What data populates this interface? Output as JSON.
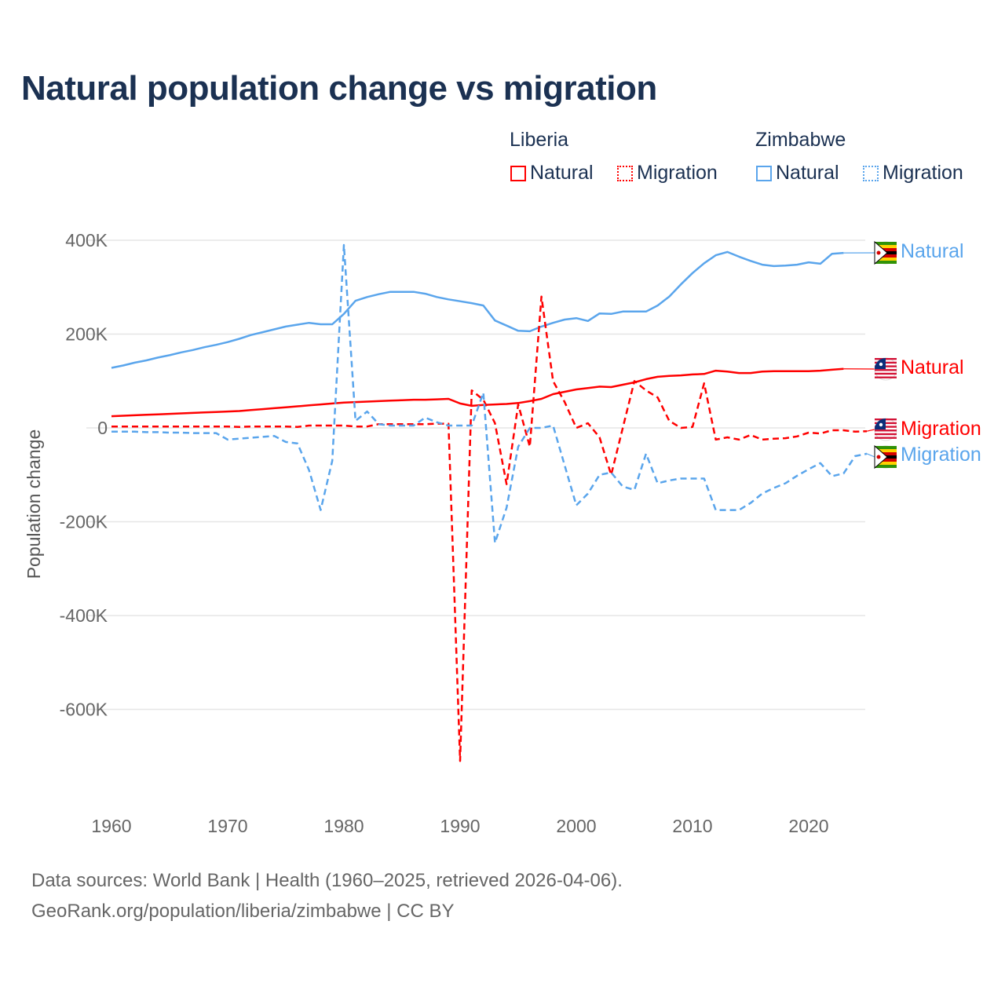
{
  "title": "Natural population change vs migration",
  "legend": {
    "groups": [
      {
        "name": "Liberia",
        "items": [
          "Natural",
          "Migration"
        ],
        "color": "#ff0000"
      },
      {
        "name": "Zimbabwe",
        "items": [
          "Natural",
          "Migration"
        ],
        "color": "#5aa5ec"
      }
    ]
  },
  "footer": {
    "line1": "Data sources: World Bank | Health (1960–2025, retrieved 2026-04-06).",
    "line2": "GeoRank.org/population/liberia/zimbabwe | CC BY"
  },
  "chart_data": {
    "type": "line",
    "title": "Natural population change vs migration",
    "xlabel": "",
    "ylabel": "Population change",
    "xlim": [
      1960,
      2025
    ],
    "ylim": [
      -720,
      420
    ],
    "x_ticks": [
      1960,
      1970,
      1980,
      1990,
      2000,
      2010,
      2020
    ],
    "y_ticks": [
      {
        "value": 400,
        "label": "400K"
      },
      {
        "value": 200,
        "label": "200K"
      },
      {
        "value": 0,
        "label": "0"
      },
      {
        "value": -200,
        "label": "-200K"
      },
      {
        "value": -400,
        "label": "-400K"
      },
      {
        "value": -600,
        "label": "-600K"
      }
    ],
    "units": "thousands",
    "series": [
      {
        "name": "Zimbabwe Natural",
        "label": "Natural",
        "color": "#5aa5ec",
        "dash": false,
        "start": 1960,
        "values": [
          128,
          133,
          139,
          144,
          150,
          155,
          161,
          166,
          172,
          177,
          183,
          190,
          198,
          204,
          210,
          216,
          220,
          224,
          221,
          221,
          243,
          271,
          279,
          285,
          290,
          290,
          290,
          286,
          279,
          274,
          270,
          266,
          261,
          229,
          218,
          207,
          206,
          216,
          224,
          231,
          234,
          228,
          244,
          243,
          248,
          248,
          248,
          261,
          280,
          306,
          330,
          351,
          368,
          375,
          365,
          356,
          348,
          345,
          346,
          348,
          353,
          350,
          371,
          373
        ]
      },
      {
        "name": "Liberia Natural",
        "label": "Natural",
        "color": "#ff0000",
        "dash": false,
        "start": 1960,
        "values": [
          25,
          26,
          27,
          28,
          29,
          30,
          31,
          32,
          33,
          34,
          35,
          36,
          38,
          40,
          42,
          44,
          46,
          48,
          50,
          52,
          54,
          55,
          56,
          57,
          58,
          59,
          60,
          60,
          61,
          62,
          52,
          47,
          49,
          50,
          51,
          53,
          57,
          62,
          72,
          77,
          82,
          85,
          88,
          87,
          92,
          97,
          104,
          109,
          111,
          112,
          114,
          115,
          122,
          120,
          117,
          117,
          120,
          121,
          121,
          121,
          121,
          122,
          124,
          126
        ]
      },
      {
        "name": "Liberia Migration",
        "label": "Migration",
        "color": "#ff0000",
        "dash": true,
        "start": 1960,
        "values": [
          3,
          3,
          3,
          3,
          3,
          3,
          3,
          3,
          3,
          3,
          3,
          2,
          3,
          3,
          3,
          3,
          2,
          5,
          5,
          5,
          5,
          3,
          3,
          8,
          8,
          8,
          8,
          8,
          9,
          9,
          -710,
          80,
          60,
          10,
          -120,
          50,
          -40,
          280,
          100,
          55,
          0,
          10,
          -20,
          -100,
          0,
          100,
          80,
          65,
          15,
          0,
          2,
          95,
          -25,
          -20,
          -25,
          -15,
          -25,
          -23,
          -22,
          -18,
          -10,
          -12,
          -5,
          -5,
          -8,
          -7
        ]
      },
      {
        "name": "Zimbabwe Migration",
        "label": "Migration",
        "color": "#5aa5ec",
        "dash": true,
        "start": 1960,
        "values": [
          -8,
          -8,
          -8,
          -9,
          -9,
          -10,
          -10,
          -11,
          -11,
          -11,
          -25,
          -23,
          -21,
          -19,
          -17,
          -30,
          -33,
          -90,
          -175,
          -70,
          390,
          15,
          35,
          8,
          5,
          5,
          5,
          22,
          12,
          5,
          5,
          5,
          75,
          -245,
          -170,
          -40,
          0,
          0,
          5,
          -80,
          -165,
          -140,
          -100,
          -95,
          -125,
          -132,
          -55,
          -118,
          -112,
          -108,
          -108,
          -108,
          -175,
          -175,
          -175,
          -160,
          -140,
          -128,
          -118,
          -102,
          -88,
          -75,
          -103,
          -97,
          -60,
          -55
        ]
      }
    ],
    "grid": true,
    "legend_placement": "top-right"
  }
}
